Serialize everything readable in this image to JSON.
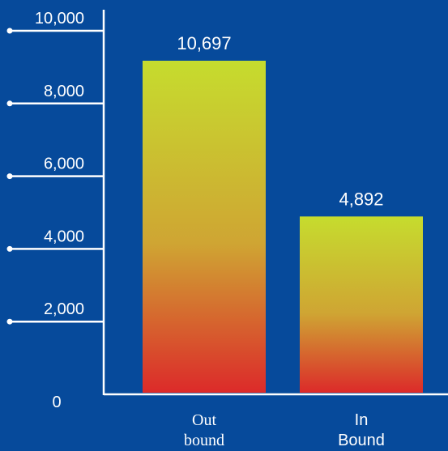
{
  "chart_data": {
    "type": "bar",
    "categories": [
      {
        "lines": [
          "Out",
          "bound"
        ],
        "font": "serif"
      },
      {
        "lines": [
          "In",
          "Bound"
        ],
        "font": "sans"
      }
    ],
    "values": [
      10697,
      4892
    ],
    "data_labels": [
      "10,697",
      "4,892"
    ],
    "y_ticks": [
      {
        "value": 0,
        "label": "0"
      },
      {
        "value": 2000,
        "label": "2,000"
      },
      {
        "value": 4000,
        "label": "4,000"
      },
      {
        "value": 6000,
        "label": "6,000"
      },
      {
        "value": 8000,
        "label": "8,000"
      },
      {
        "value": 10000,
        "label": "10,000"
      }
    ],
    "ylim": [
      0,
      10000
    ],
    "title": "",
    "xlabel": "",
    "ylabel": "",
    "grid": false,
    "legend": "none",
    "colors": {
      "background": "#064a9b",
      "axis": "#ffffff",
      "bar_gradient_top": "#c6dc2e",
      "bar_gradient_mid": "#cfa533",
      "bar_gradient_bottom": "#dc2a2a"
    }
  }
}
